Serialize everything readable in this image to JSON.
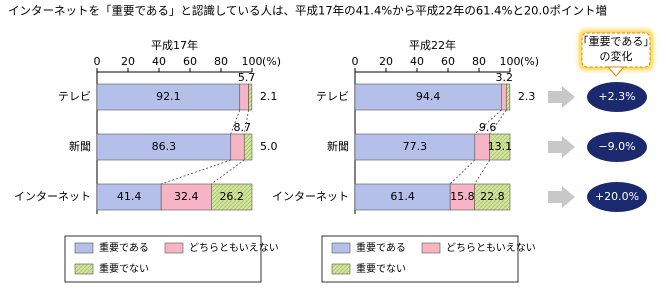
{
  "title": "インターネットを「重要である」と認識している人は、平成17年の41.4%から平成22年の61.4%と20.0ポイント増",
  "chart_data": [
    {
      "type": "bar",
      "orientation": "horizontal",
      "stacked": true,
      "title": "平成17年",
      "xlabel": "(%)",
      "categories": [
        "テレビ",
        "新聞",
        "インターネット"
      ],
      "series": [
        {
          "name": "重要である",
          "color": "#b4c0ea",
          "values": [
            92.1,
            86.3,
            41.4
          ]
        },
        {
          "name": "どちらともいえない",
          "color": "#f6b4c4",
          "values": [
            5.7,
            8.7,
            32.4
          ]
        },
        {
          "name": "重要でない",
          "color": "#d2e59e",
          "values": [
            2.1,
            5.0,
            26.2
          ],
          "value_labels": [
            "2.1",
            "5.0",
            "26.2"
          ]
        }
      ],
      "xlim": [
        0,
        100
      ],
      "xticks": [
        0,
        20,
        40,
        60,
        80,
        100
      ]
    },
    {
      "type": "bar",
      "orientation": "horizontal",
      "stacked": true,
      "title": "平成22年",
      "xlabel": "(%)",
      "categories": [
        "テレビ",
        "新聞",
        "インターネット"
      ],
      "series": [
        {
          "name": "重要である",
          "color": "#b4c0ea",
          "values": [
            94.4,
            77.3,
            61.4
          ]
        },
        {
          "name": "どちらともいえない",
          "color": "#f6b4c4",
          "values": [
            3.2,
            9.6,
            15.8
          ]
        },
        {
          "name": "重要でない",
          "color": "#d2e59e",
          "values": [
            2.3,
            13.1,
            22.8
          ]
        }
      ],
      "xlim": [
        0,
        100
      ],
      "xticks": [
        0,
        20,
        40,
        60,
        80,
        100
      ]
    }
  ],
  "changes": {
    "title": [
      "「重要である」",
      "の変化"
    ],
    "color": "#1b2a6e",
    "values": [
      2.3,
      -9.0,
      20.0
    ],
    "value_labels": [
      "+2.3%",
      "−9.0%",
      "+20.0%"
    ]
  }
}
